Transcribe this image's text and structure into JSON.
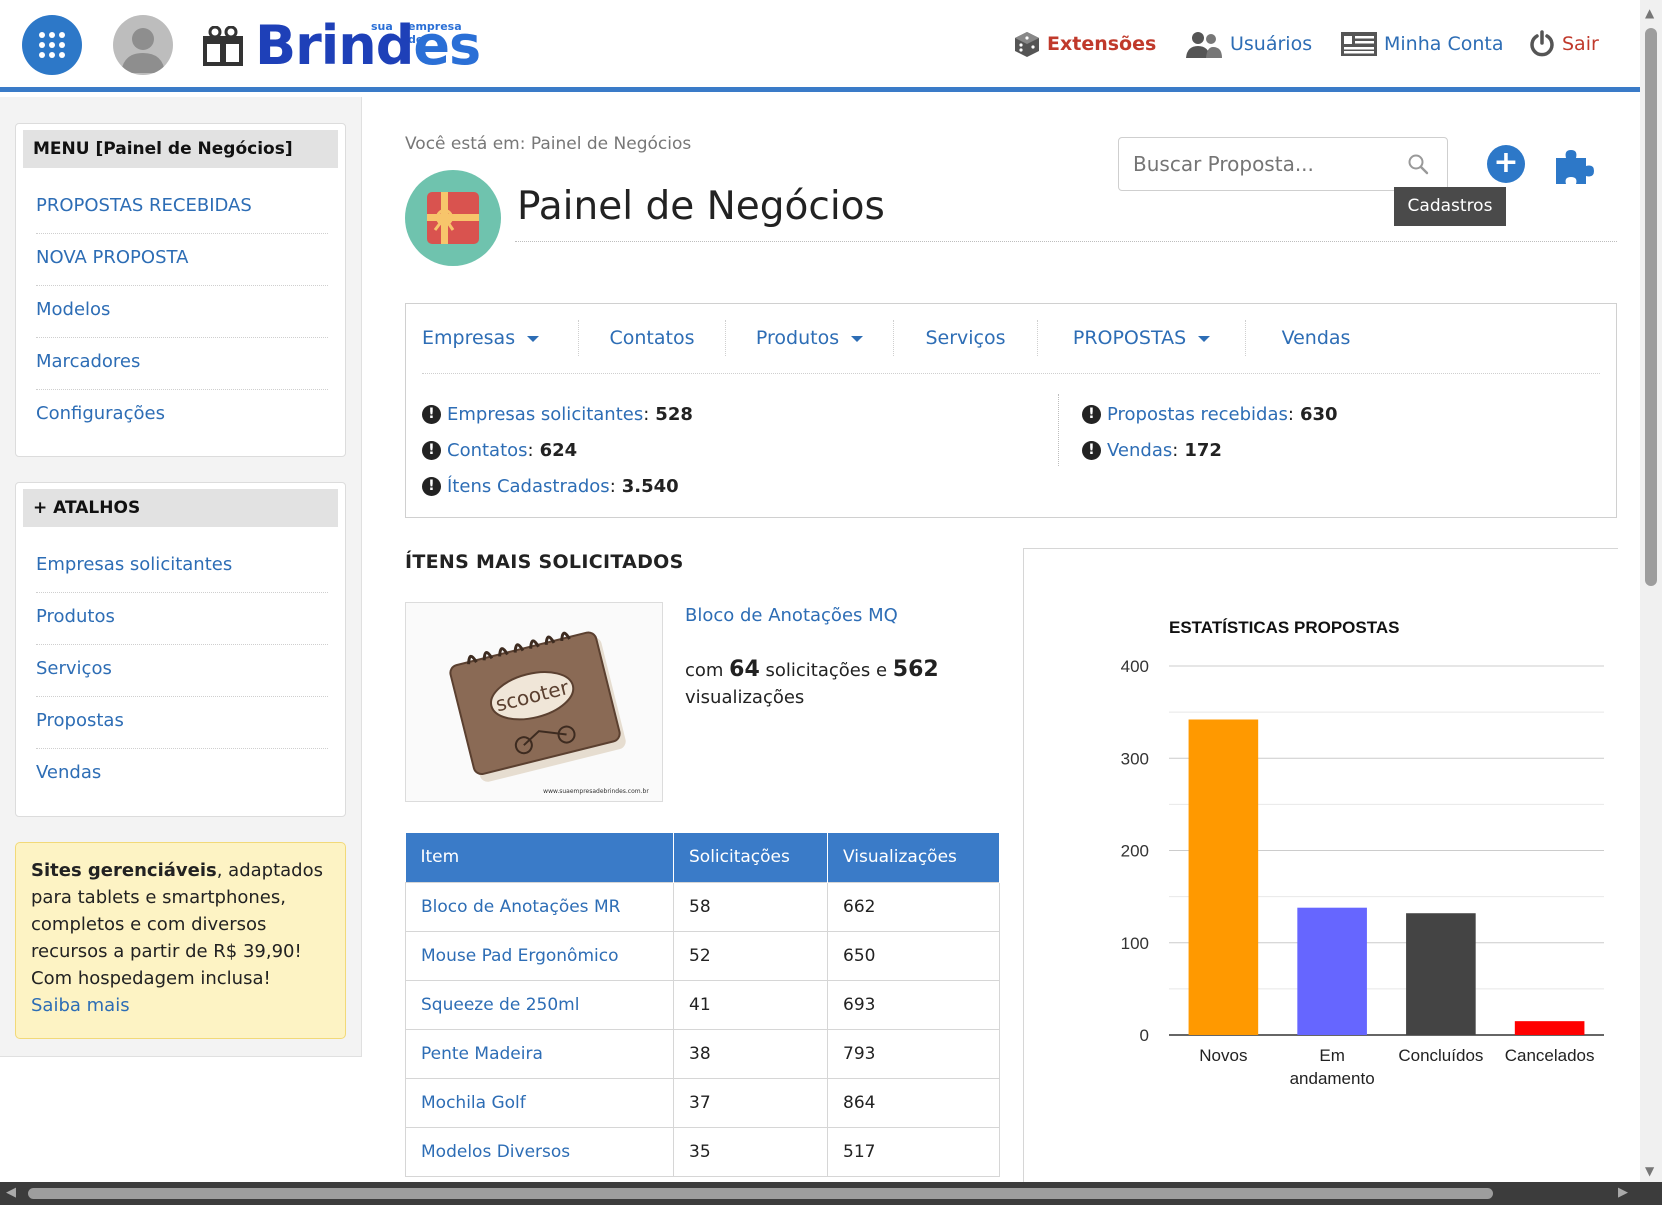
{
  "header": {
    "logo": {
      "word": "Brindes",
      "tagline_left": "sua",
      "tagline_right": "empresa de"
    },
    "nav": [
      {
        "label": "Extensões"
      },
      {
        "label": "Usuários"
      },
      {
        "label": "Minha Conta"
      },
      {
        "label": "Sair"
      }
    ]
  },
  "sidebar": {
    "menu": {
      "title": "MENU [Painel de Negócios]",
      "items": [
        "PROPOSTAS RECEBIDAS",
        "NOVA PROPOSTA",
        "Modelos",
        "Marcadores",
        "Configurações"
      ]
    },
    "shortcuts": {
      "title": "+ ATALHOS",
      "items": [
        "Empresas solicitantes",
        "Produtos",
        "Serviços",
        "Propostas",
        "Vendas"
      ]
    },
    "promo": {
      "bold": "Sites gerenciáveis",
      "text": ", adaptados para tablets e smartphones, completos e com diversos recursos a partir de R$ 39,90! Com hospedagem inclusa!",
      "link": "Saiba mais"
    }
  },
  "main": {
    "breadcrumb": "Você está em: Painel de Negócios",
    "title": "Painel de Negócios",
    "search": {
      "placeholder": "Buscar Proposta..."
    },
    "tooltip": "Cadastros",
    "tabs": [
      {
        "label": "Empresas",
        "dropdown": true
      },
      {
        "label": "Contatos",
        "dropdown": false
      },
      {
        "label": "Produtos",
        "dropdown": true
      },
      {
        "label": "Serviços",
        "dropdown": false
      },
      {
        "label": "PROPOSTAS",
        "dropdown": true
      },
      {
        "label": "Vendas",
        "dropdown": false
      }
    ],
    "stats_left": [
      {
        "label": "Empresas solicitantes",
        "value": "528"
      },
      {
        "label": "Contatos",
        "value": "624"
      },
      {
        "label": "Ítens Cadastrados",
        "value": "3.540"
      }
    ],
    "stats_right": [
      {
        "label": "Propostas recebidas",
        "value": "630"
      },
      {
        "label": "Vendas",
        "value": "172"
      }
    ],
    "top_items": {
      "title": "ÍTENS MAIS SOLICITADOS",
      "featured": {
        "name": "Bloco de Anotações MQ",
        "desc_pre": "com ",
        "requests": "64",
        "desc_mid": " solicitações e ",
        "views": "562",
        "desc_post": " visualizações",
        "image_text": "scooter",
        "image_caption": "www.suaempresadebrindes.com.br"
      },
      "columns": [
        "Item",
        "Solicitações",
        "Visualizações"
      ],
      "rows": [
        [
          "Bloco de Anotações MR",
          "58",
          "662"
        ],
        [
          "Mouse Pad Ergonômico",
          "52",
          "650"
        ],
        [
          "Squeeze de 250ml",
          "41",
          "693"
        ],
        [
          "Pente Madeira",
          "38",
          "793"
        ],
        [
          "Mochila Golf",
          "37",
          "864"
        ],
        [
          "Modelos Diversos",
          "35",
          "517"
        ]
      ]
    }
  },
  "chart_data": {
    "type": "bar",
    "title": "ESTATÍSTICAS PROPOSTAS",
    "categories": [
      "Novos",
      "Em andamento",
      "Concluídos",
      "Cancelados"
    ],
    "values": [
      342,
      138,
      132,
      15
    ],
    "colors": [
      "#ff9900",
      "#6666ff",
      "#444444",
      "#ff0000"
    ],
    "ylim": [
      0,
      400
    ],
    "yticks": [
      0,
      100,
      200,
      300,
      400
    ],
    "grid": true
  },
  "colors": {
    "brand_blue": "#3a7bc8",
    "link": "#2d6db5",
    "danger": "#c0392b"
  }
}
